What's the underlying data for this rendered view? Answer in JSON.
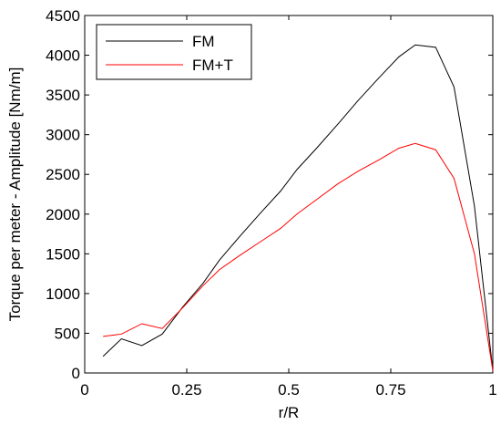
{
  "chart_data": {
    "type": "line",
    "x": [
      0.045,
      0.09,
      0.14,
      0.19,
      0.24,
      0.29,
      0.33,
      0.38,
      0.43,
      0.48,
      0.52,
      0.57,
      0.62,
      0.67,
      0.72,
      0.77,
      0.81,
      0.86,
      0.905,
      0.955,
      1
    ],
    "series": [
      {
        "name": "FM",
        "color": "#000000",
        "values": [
          210,
          430,
          345,
          490,
          830,
          1130,
          1420,
          1720,
          2010,
          2290,
          2560,
          2840,
          3130,
          3430,
          3710,
          3980,
          4130,
          4100,
          3600,
          2100,
          30
        ]
      },
      {
        "name": "FM+T",
        "color": "#ff0000",
        "values": [
          460,
          490,
          620,
          560,
          820,
          1100,
          1300,
          1480,
          1650,
          1820,
          2000,
          2190,
          2380,
          2540,
          2680,
          2830,
          2890,
          2810,
          2450,
          1500,
          30
        ]
      }
    ],
    "xlabel": "r/R",
    "ylabel": "Torque per meter - Amplitude [Nm/m]",
    "xlim": [
      0,
      1
    ],
    "xticks": [
      0,
      0.25,
      0.5,
      0.75,
      1
    ],
    "ylim": [
      0,
      4500
    ],
    "yticks": [
      0,
      500,
      1000,
      1500,
      2000,
      2500,
      3000,
      3500,
      4000,
      4500
    ],
    "legend": "upper-left"
  }
}
